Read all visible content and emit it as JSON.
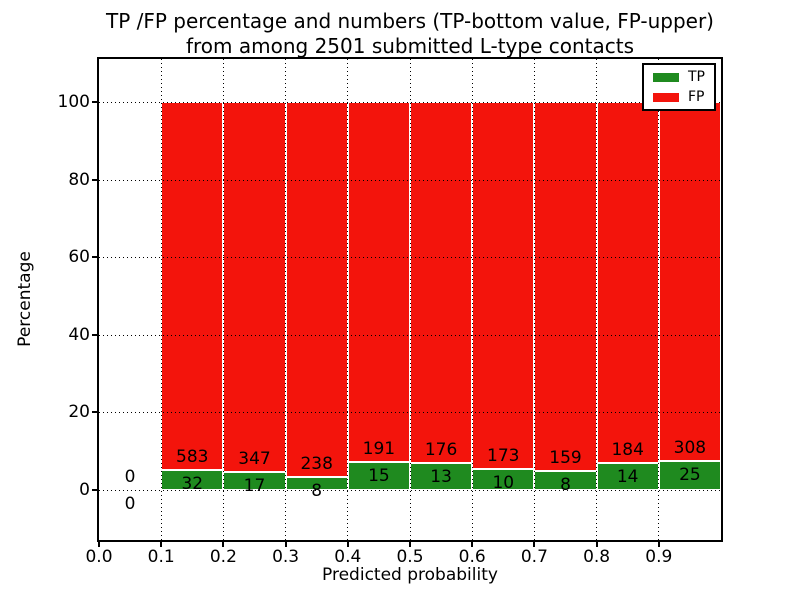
{
  "title": {
    "line1": "TP /FP percentage and numbers (TP-bottom value, FP-upper)",
    "line2": "from among 2501 submitted L-type contacts"
  },
  "chart_data": {
    "type": "bar",
    "stacked": true,
    "title": "TP /FP percentage and numbers (TP-bottom value, FP-upper) from among 2501 submitted L-type contacts",
    "xlabel": "Predicted probability",
    "ylabel": "Percentage",
    "xlim": [
      0.0,
      1.0
    ],
    "ylim": [
      -13,
      111
    ],
    "grid": "dotted, drawn above bars",
    "legend_position": "upper right",
    "bin_width": 0.1,
    "bin_starts": [
      0.0,
      0.1,
      0.2,
      0.3,
      0.4,
      0.5,
      0.6,
      0.7,
      0.8,
      0.9
    ],
    "x_ticks": [
      "0.0",
      "0.1",
      "0.2",
      "0.3",
      "0.4",
      "0.5",
      "0.6",
      "0.7",
      "0.8",
      "0.9"
    ],
    "y_ticks": [
      "0",
      "20",
      "40",
      "60",
      "80",
      "100"
    ],
    "series": [
      {
        "name": "TP",
        "color": "#1f8a1f",
        "counts": [
          0,
          32,
          17,
          8,
          15,
          13,
          10,
          8,
          14,
          25
        ]
      },
      {
        "name": "FP",
        "color": "#f3140c",
        "counts": [
          0,
          583,
          347,
          238,
          191,
          176,
          173,
          159,
          184,
          308
        ]
      }
    ],
    "tp_percent": [
      0,
      5.2,
      4.67,
      3.25,
      7.28,
      6.88,
      5.46,
      4.79,
      7.07,
      7.51
    ],
    "stacked_total_percent": 100,
    "total_contacts": 2501
  }
}
